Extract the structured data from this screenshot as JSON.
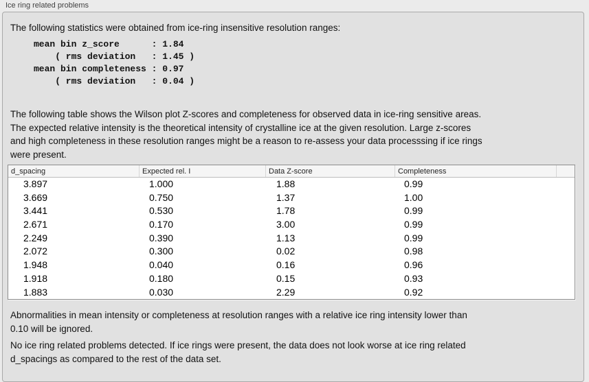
{
  "panel": {
    "title": "Ice ring related problems"
  },
  "sections": {
    "stats_intro": "The following statistics were obtained from ice-ring insensitive resolution ranges:",
    "stats_block": "mean bin z_score      : 1.84\n    ( rms deviation   : 1.45 )\nmean bin completeness : 0.97\n    ( rms deviation   : 0.04 )",
    "table_description": "The following table shows the Wilson plot Z-scores and completeness for observed data in ice-ring sensitive areas.\nThe expected relative intensity is the theoretical intensity of crystalline ice at the given resolution. Large z-scores\nand high completeness in these resolution ranges might be a reason to re-assess your data processsing if ice rings\nwere present.",
    "ignore_note": "Abnormalities in mean intensity or completeness at resolution ranges with a relative ice ring intensity lower than\n0.10 will be ignored.",
    "conclusion": "No ice ring related problems detected. If ice rings were present, the data does not look worse at ice ring related\nd_spacings as compared to the rest of the data set."
  },
  "stats": {
    "mean_bin_z_score": "1.84",
    "z_score_rms_deviation": "1.45",
    "mean_bin_completeness": "0.97",
    "completeness_rms_deviation": "0.04"
  },
  "table": {
    "columns": [
      "d_spacing",
      "Expected rel. I",
      "Data Z-score",
      "Completeness"
    ],
    "rows": [
      [
        "3.897",
        "1.000",
        "1.88",
        "0.99"
      ],
      [
        "3.669",
        "0.750",
        "1.37",
        "1.00"
      ],
      [
        "3.441",
        "0.530",
        "1.78",
        "0.99"
      ],
      [
        "2.671",
        "0.170",
        "3.00",
        "0.99"
      ],
      [
        "2.249",
        "0.390",
        "1.13",
        "0.99"
      ],
      [
        "2.072",
        "0.300",
        "0.02",
        "0.98"
      ],
      [
        "1.948",
        "0.040",
        "0.16",
        "0.96"
      ],
      [
        "1.918",
        "0.180",
        "0.15",
        "0.93"
      ],
      [
        "1.883",
        "0.030",
        "2.29",
        "0.92"
      ]
    ]
  },
  "colors": {
    "page_background": "#ebebeb",
    "panel_background": "#e1e1e1",
    "panel_border": "#a9a9a9",
    "table_background": "#ffffff",
    "table_border": "#8c8c8c",
    "table_header_background": "#f5f5f5",
    "text": "#1a1a1a"
  }
}
